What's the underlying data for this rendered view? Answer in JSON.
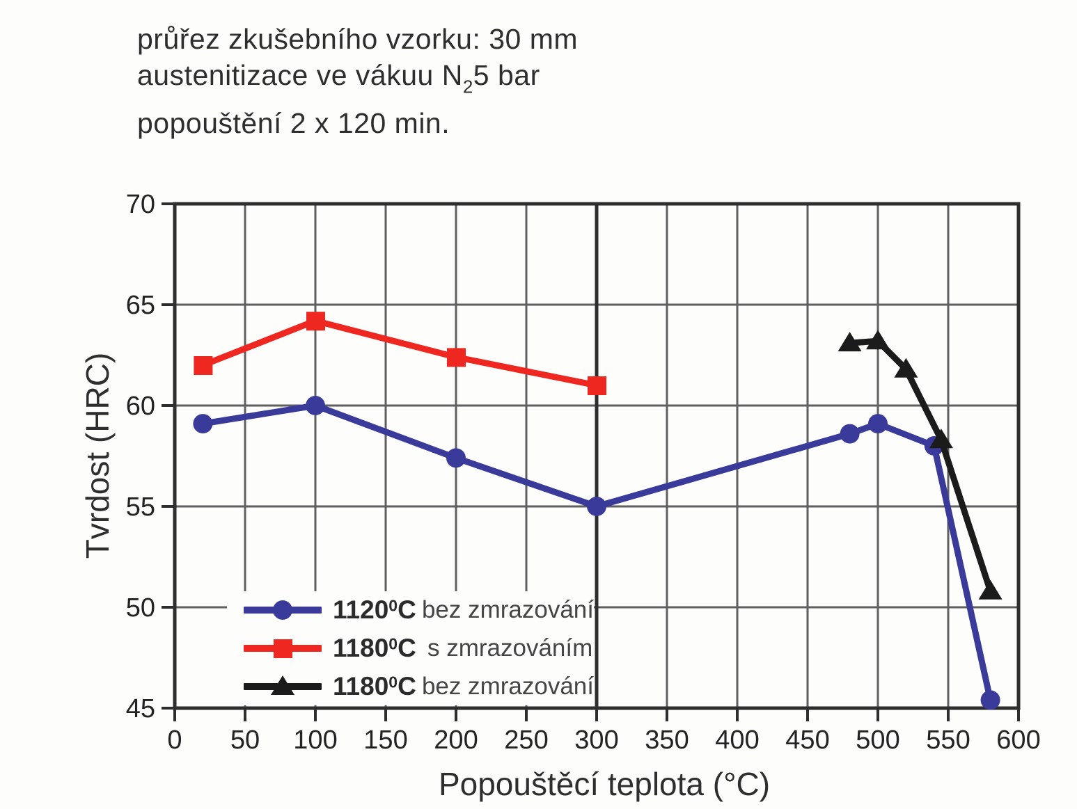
{
  "annotation": {
    "line1": "průřez zkušebního vzorku: 30 mm",
    "line2_pre": "austenitizace ve vákuu N",
    "line2_sub": "2",
    "line2_post": "5 bar",
    "line3": "popouštění 2 x 120 min."
  },
  "axes": {
    "y_label": "Tvrdost (HRC)",
    "x_label": "Popouštěcí teplota (°C)"
  },
  "legend": {
    "items": [
      {
        "temp": "1120",
        "deg": "0",
        "unit": "C",
        "desc": "bez zmrazování"
      },
      {
        "temp": "1180",
        "deg": "0",
        "unit": "C",
        "desc": "s zmrazováním"
      },
      {
        "temp": "1180",
        "deg": "0",
        "unit": "C",
        "desc": "bez zmrazování"
      }
    ]
  },
  "colors": {
    "series_blue": "#3a3a9b",
    "series_red": "#ee2721",
    "series_black": "#1b1b1b",
    "grid": "#5f5f5f",
    "grid_dark": "#2e2e2e",
    "text": "#2e2e2e"
  },
  "chart_data": {
    "type": "line",
    "title": "",
    "xlabel": "Popouštěcí teplota (°C)",
    "ylabel": "Tvrdost (HRC)",
    "xlim": [
      0,
      600
    ],
    "ylim": [
      45,
      70
    ],
    "x_ticks": [
      0,
      50,
      100,
      150,
      200,
      250,
      300,
      350,
      400,
      450,
      500,
      550,
      600
    ],
    "y_ticks": [
      45,
      50,
      55,
      60,
      65,
      70
    ],
    "grid": true,
    "dark_vertical_gridline_at": 300,
    "legend_position": "inside-bottom-left",
    "series": [
      {
        "name": "1120°C bez zmrazování",
        "color": "#3a3a9b",
        "marker": "circle",
        "x": [
          20,
          100,
          200,
          300,
          480,
          500,
          540,
          580
        ],
        "y": [
          59.1,
          60.0,
          57.4,
          55.0,
          58.6,
          59.1,
          58.0,
          45.4
        ]
      },
      {
        "name": "1180°C s zmrazováním",
        "color": "#ee2721",
        "marker": "square",
        "x": [
          20,
          100,
          200,
          300
        ],
        "y": [
          62.0,
          64.2,
          62.4,
          61.0
        ]
      },
      {
        "name": "1180°C bez zmrazování",
        "color": "#1b1b1b",
        "marker": "triangle",
        "x": [
          480,
          500,
          520,
          545,
          580
        ],
        "y": [
          63.1,
          63.2,
          61.8,
          58.3,
          50.8
        ]
      }
    ]
  }
}
